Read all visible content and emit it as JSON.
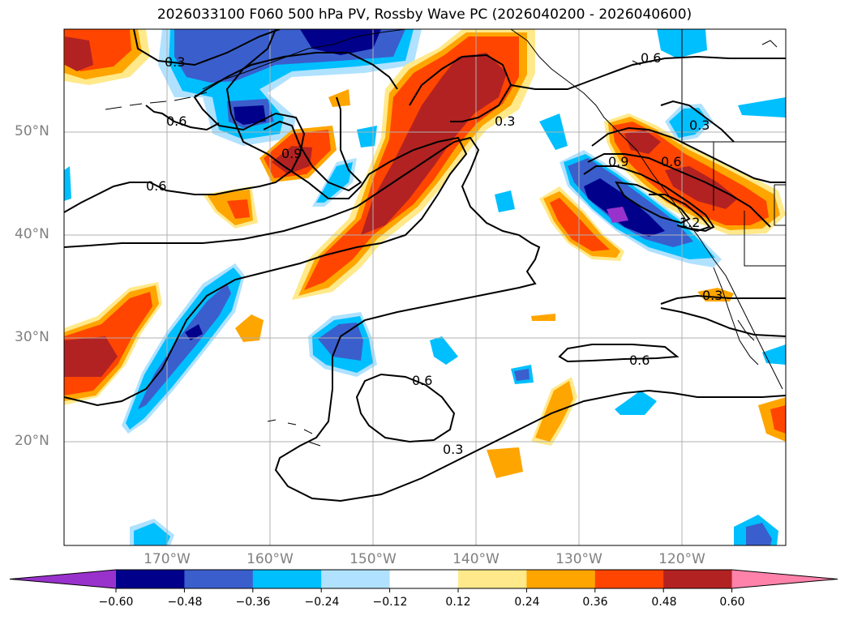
{
  "title": "2026033100 F060 500 hPa PV, Rossby Wave PC (2026040200 - 2026040600)",
  "lat_labels": [
    "50°N",
    "40°N",
    "30°N",
    "20°N"
  ],
  "lon_labels": [
    "170°W",
    "160°W",
    "150°W",
    "140°W",
    "130°W",
    "120°W"
  ],
  "contour_labels": [
    "0.3",
    "0.6",
    "0.6",
    "0.9",
    "0.3",
    "0.6",
    "0.3",
    "0.9",
    "0.6",
    "1.2",
    "0.3",
    "0.6",
    "0.6",
    "0.3"
  ],
  "colorbar": {
    "ticks": [
      "−0.60",
      "−0.48",
      "−0.36",
      "−0.24",
      "−0.12",
      "0.12",
      "0.24",
      "0.36",
      "0.48",
      "0.60"
    ],
    "colors": [
      "#9932cc",
      "#00008b",
      "#3a5fcd",
      "#00bfff",
      "#b0e2ff",
      "#ffffff",
      "#ffe98a",
      "#ffa500",
      "#ff4500",
      "#b22222",
      "#ff82ab"
    ]
  },
  "colors": {
    "neg1": "#b0e2ff",
    "neg2": "#00bfff",
    "neg3": "#3a5fcd",
    "neg4": "#00008b",
    "neg5": "#9932cc",
    "pos1": "#ffe98a",
    "pos2": "#ffa500",
    "pos3": "#ff4500",
    "pos4": "#b22222"
  }
}
